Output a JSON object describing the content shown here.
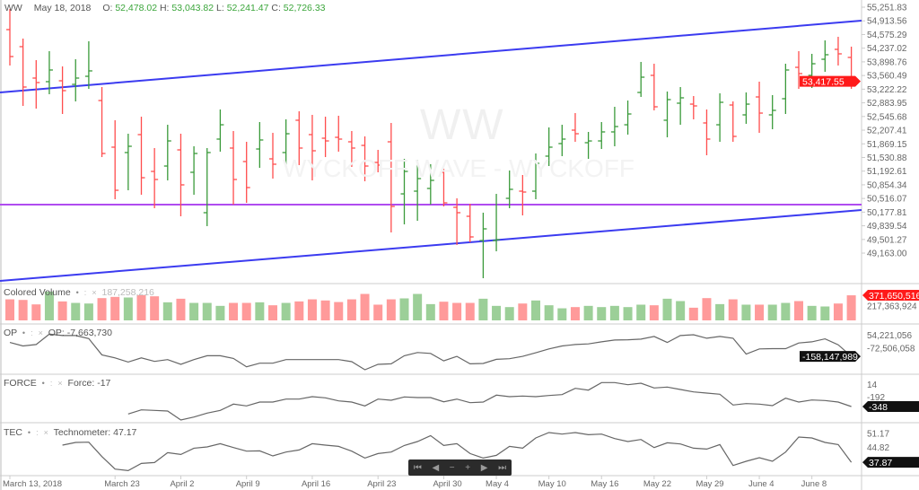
{
  "header": {
    "symbol": "WW",
    "date": "May 18, 2018",
    "o_label": "O:",
    "o": "52,478.02",
    "h_label": "H:",
    "h": "53,043.82",
    "l_label": "L:",
    "l": "52,241.47",
    "c_label": "C:",
    "c": "52,726.33"
  },
  "watermark": {
    "big": "WW",
    "small": "WYCKOFF WAVE - WYCKOFF"
  },
  "colors": {
    "up": "#3a9a3a",
    "down": "#ff4d4d",
    "vol_up": "#9ccf98",
    "vol_down": "#ff9a9a",
    "trend": "#3b3bf0",
    "level": "#b04cf0",
    "line": "#666666"
  },
  "price_axis": {
    "labels": [
      "55,251.83",
      "54,913.56",
      "54,575.29",
      "54,237.02",
      "53,898.76",
      "53,560.49",
      "53,222.22",
      "52,883.95",
      "52,545.68",
      "52,207.41",
      "51,869.15",
      "51,530.88",
      "51,192.61",
      "50,854.34",
      "50,516.07",
      "50,177.81",
      "49,839.54",
      "49,501.27",
      "49,163.00"
    ],
    "values": [
      55251.83,
      54913.56,
      54575.29,
      54237.02,
      53898.76,
      53560.49,
      53222.22,
      52883.95,
      52545.68,
      52207.41,
      51869.15,
      51530.88,
      51192.61,
      50854.34,
      50516.07,
      50177.81,
      49839.54,
      49501.27,
      49163.0
    ],
    "last_price": "53,417.55",
    "last_value": 53417.55
  },
  "trendlines": {
    "upper": [
      53141,
      54919
    ],
    "lower": [
      48475,
      50230
    ],
    "level": 50364
  },
  "chart_data": {
    "type": "ohlc",
    "title": "WW",
    "ohlc": [
      [
        54697,
        55208,
        53808,
        54030
      ],
      [
        54275,
        54475,
        52808,
        53275
      ],
      [
        53497,
        53941,
        52741,
        53386
      ],
      [
        53408,
        54163,
        53097,
        53697
      ],
      [
        53430,
        53786,
        52608,
        53186
      ],
      [
        53341,
        53963,
        52919,
        53497
      ],
      [
        53541,
        54408,
        53230,
        53675
      ],
      [
        52941,
        53275,
        51541,
        51630
      ],
      [
        51786,
        52453,
        50497,
        50719
      ],
      [
        51653,
        52119,
        50719,
        51808
      ],
      [
        52097,
        52541,
        50608,
        51030
      ],
      [
        51186,
        51764,
        50275,
        50986
      ],
      [
        51319,
        52341,
        50964,
        51941
      ],
      [
        51719,
        52119,
        50075,
        50853
      ],
      [
        51164,
        51808,
        50608,
        51630
      ],
      [
        50164,
        51764,
        49831,
        51653
      ],
      [
        51986,
        52719,
        51675,
        52341
      ],
      [
        51764,
        52186,
        50364,
        50986
      ],
      [
        51430,
        51919,
        50408,
        50786
      ],
      [
        51741,
        52408,
        51275,
        51964
      ],
      [
        51497,
        52141,
        51008,
        51364
      ],
      [
        51653,
        52475,
        51275,
        52119
      ],
      [
        52453,
        52675,
        51342,
        51764
      ],
      [
        52097,
        52586,
        50964,
        51697
      ],
      [
        52008,
        52541,
        51541,
        51941
      ],
      [
        52030,
        52564,
        51675,
        51986
      ],
      [
        51919,
        52186,
        51297,
        51764
      ],
      [
        51830,
        52053,
        50942,
        51319
      ],
      [
        51408,
        51719,
        51164,
        51342
      ],
      [
        51919,
        52386,
        49675,
        50319
      ],
      [
        50630,
        51497,
        49875,
        51186
      ],
      [
        50697,
        51475,
        49964,
        51008
      ],
      [
        50764,
        51364,
        50364,
        50964
      ],
      [
        51164,
        51253,
        50319,
        50408
      ],
      [
        50297,
        50519,
        49364,
        50164
      ],
      [
        50075,
        50386,
        49431,
        49564
      ],
      [
        49475,
        50164,
        48542,
        49764
      ],
      [
        49475,
        50630,
        49208,
        49497
      ],
      [
        50519,
        51208,
        50275,
        50742
      ],
      [
        50697,
        51097,
        50097,
        50675
      ],
      [
        50697,
        51630,
        50497,
        51386
      ],
      [
        51564,
        52275,
        51319,
        51786
      ],
      [
        51875,
        52341,
        51564,
        51986
      ],
      [
        52208,
        52630,
        51919,
        52119
      ],
      [
        51897,
        52164,
        51497,
        51940
      ],
      [
        51941,
        52408,
        51741,
        52164
      ],
      [
        52164,
        52786,
        51808,
        52297
      ],
      [
        52341,
        52941,
        52097,
        52608
      ],
      [
        53141,
        53897,
        53030,
        53519
      ],
      [
        53564,
        53852,
        52697,
        52786
      ],
      [
        52453,
        53164,
        52030,
        52964
      ],
      [
        52875,
        53275,
        52341,
        53008
      ],
      [
        52852,
        53052,
        52475,
        52808
      ],
      [
        52386,
        52719,
        51586,
        51986
      ],
      [
        52341,
        53119,
        51919,
        52897
      ],
      [
        52830,
        52919,
        51919,
        52053
      ],
      [
        52586,
        53141,
        52364,
        52852
      ],
      [
        53030,
        53408,
        52141,
        52630
      ],
      [
        52586,
        53075,
        52230,
        52697
      ],
      [
        52986,
        53852,
        52608,
        53697
      ],
      [
        53763,
        54163,
        53230,
        53608
      ],
      [
        53564,
        54097,
        53252,
        53852
      ],
      [
        53963,
        54430,
        53652,
        54075
      ],
      [
        54208,
        54519,
        53808,
        54097
      ],
      [
        54008,
        54275,
        53230,
        53417.55
      ]
    ],
    "x_labels": [
      {
        "bar": 0,
        "text": "March 13, 2018"
      },
      {
        "bar": 8,
        "text": "March 23"
      },
      {
        "bar": 13,
        "text": "April 2"
      },
      {
        "bar": 18,
        "text": "April 9"
      },
      {
        "bar": 23,
        "text": "April 16"
      },
      {
        "bar": 28,
        "text": "April 23"
      },
      {
        "bar": 33,
        "text": "April 30"
      },
      {
        "bar": 37,
        "text": "May 4"
      },
      {
        "bar": 41,
        "text": "May 10"
      },
      {
        "bar": 45,
        "text": "May 16"
      },
      {
        "bar": 49,
        "text": "May 22"
      },
      {
        "bar": 53,
        "text": "May 29"
      },
      {
        "bar": 57,
        "text": "June 4"
      },
      {
        "bar": 61,
        "text": "June 8"
      }
    ],
    "volume_millions": [
      312,
      303,
      237,
      427,
      281,
      259,
      250,
      330,
      348,
      339,
      374,
      357,
      268,
      321,
      259,
      259,
      215,
      259,
      259,
      268,
      224,
      259,
      281,
      312,
      295,
      272,
      312,
      392,
      233,
      312,
      326,
      392,
      241,
      277,
      259,
      259,
      321,
      215,
      197,
      250,
      295,
      224,
      179,
      197,
      215,
      197,
      215,
      197,
      233,
      224,
      321,
      286,
      188,
      330,
      241,
      312,
      233,
      233,
      233,
      259,
      286,
      215,
      206,
      250,
      371.65
    ],
    "volume_up": [
      0,
      0,
      0,
      1,
      0,
      1,
      1,
      0,
      0,
      1,
      0,
      0,
      1,
      0,
      1,
      1,
      1,
      0,
      0,
      1,
      0,
      1,
      0,
      0,
      0,
      0,
      0,
      0,
      0,
      0,
      1,
      1,
      1,
      0,
      0,
      0,
      1,
      1,
      1,
      0,
      1,
      1,
      1,
      0,
      1,
      1,
      1,
      1,
      1,
      0,
      1,
      1,
      0,
      0,
      1,
      0,
      1,
      0,
      1,
      1,
      0,
      1,
      1,
      0,
      0
    ],
    "op_millions": [
      -21.1,
      -56.0,
      -41.5,
      60.4,
      45.9,
      45.9,
      16.8,
      -143.3,
      -172.4,
      -213.1,
      -172.4,
      -207.3,
      -189.9,
      -236.4,
      -189.9,
      -152.0,
      -152.0,
      -178.2,
      -259.7,
      -224.8,
      -224.8,
      -189.9,
      -189.9,
      -189.9,
      -189.9,
      -189.9,
      -210.2,
      -288.8,
      -236.4,
      -230.6,
      -152.0,
      -120.0,
      -128.8,
      -201.5,
      -157.9,
      -230.6,
      -227.7,
      -187.0,
      -181.1,
      -157.9,
      -122.9,
      -85.1,
      -56.0,
      -41.5,
      -35.6,
      -15.3,
      2.2,
      5.1,
      10.9,
      37.1,
      -21.1,
      45.9,
      54.6,
      19.7,
      37.1,
      19.7,
      -134.6,
      -85.1,
      -82.2,
      -82.2,
      -26.9,
      -15.3,
      13.8,
      -44.4,
      -158.1
    ],
    "force": [
      null,
      null,
      null,
      null,
      null,
      null,
      null,
      null,
      null,
      -469,
      -402,
      -411,
      -421,
      -566,
      -518,
      -455,
      -411,
      -310,
      -339,
      -276,
      -276,
      -228,
      -228,
      -189,
      -208,
      -257,
      -276,
      -339,
      -228,
      -247,
      -194,
      -203,
      -203,
      -271,
      -228,
      -286,
      -276,
      -165,
      -189,
      -179,
      -189,
      -170,
      -155,
      -54,
      -83,
      38,
      38,
      4,
      28,
      -49,
      -34,
      -73,
      -112,
      -131,
      -150,
      -324,
      -300,
      -310,
      -334,
      -213,
      -276,
      -242,
      -252,
      -276,
      -348
    ],
    "technometer": [
      null,
      null,
      null,
      null,
      45.7,
      46.93,
      47.06,
      40.5,
      34.76,
      34.08,
      37.36,
      37.77,
      42.28,
      41.46,
      44.33,
      44.88,
      46.38,
      44.6,
      42.96,
      43.1,
      40.78,
      42.55,
      43.51,
      46.38,
      45.7,
      45.15,
      42.96,
      39.82,
      41.87,
      42.55,
      45.56,
      47.34,
      50.07,
      45.56,
      46.38,
      41.87,
      39.82,
      41.05,
      45.15,
      44.33,
      48.98,
      51.44,
      50.76,
      51.44,
      50.48,
      50.76,
      48.71,
      47.34,
      48.3,
      44.6,
      46.79,
      46.24,
      44.33,
      43.92,
      45.97,
      36.4,
      38.32,
      39.96,
      38.32,
      42.55,
      49.39,
      48.98,
      46.93,
      45.97,
      37.87
    ]
  },
  "panels": {
    "volume": {
      "name": "Colored Volume",
      "value": "187,258,216",
      "axis": [
        "217,363,924"
      ],
      "axis_values": [
        217.36
      ],
      "last": "371,650,516",
      "last_value": 371.65
    },
    "op": {
      "name": "OP",
      "value": "OP: -7,663,730",
      "axis": [
        "54,221,056",
        "-72,506,058"
      ],
      "axis_values": [
        54.22,
        -72.51
      ],
      "last": "-158,147,989",
      "last_value": -158.15
    },
    "force": {
      "name": "FORCE",
      "value": "Force: -17",
      "axis": [
        "14",
        "-192"
      ],
      "axis_values": [
        14,
        -192
      ],
      "last": "-348",
      "last_value": -348
    },
    "tec": {
      "name": "TEC",
      "value": "Technometer: 47.17",
      "axis": [
        "51.17",
        "44.82"
      ],
      "axis_values": [
        51.17,
        44.82
      ],
      "last": "37.87",
      "last_value": 37.87
    }
  },
  "panel_icons": {
    "dot": "•",
    "menu": ":",
    "close": "×"
  },
  "nav": {
    "first": "⏮",
    "prev": "◀",
    "zoom_out": "−",
    "zoom_in": "+",
    "next": "▶",
    "last": "⏭"
  }
}
